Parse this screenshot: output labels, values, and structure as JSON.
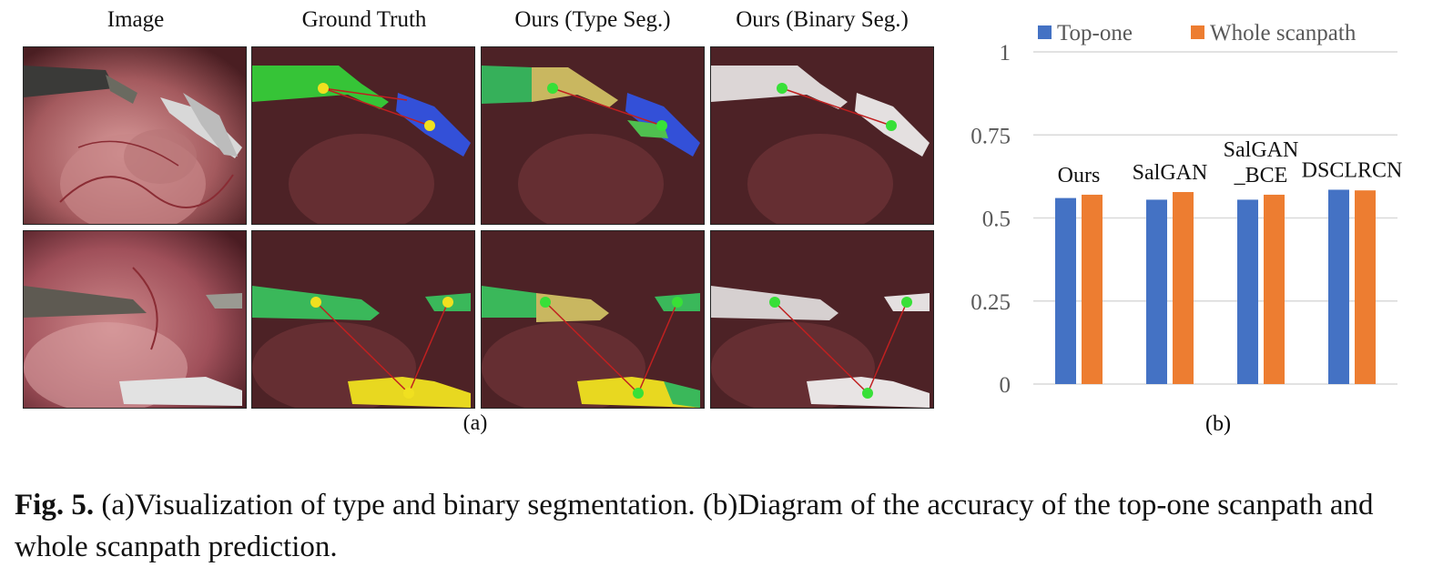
{
  "panel_a": {
    "column_headers": [
      "Image",
      "Ground Truth",
      "Ours (Type Seg.)",
      "Ours (Binary Seg.)"
    ],
    "sub_label": "(a)",
    "rows": [
      {
        "markers": [
          "1",
          "2"
        ]
      },
      {
        "markers": [
          "1",
          "2",
          "3"
        ]
      }
    ]
  },
  "panel_b": {
    "sub_label": "(b)"
  },
  "chart_data": {
    "type": "bar",
    "categories": [
      "Ours",
      "SalGAN",
      "SalGAN\n_BCE",
      "DSCLRCN"
    ],
    "category_lines": [
      [
        "Ours"
      ],
      [
        "SalGAN"
      ],
      [
        "SalGAN",
        "_BCE"
      ],
      [
        "DSCLRCN"
      ]
    ],
    "series": [
      {
        "name": "Top-one",
        "color": "#4472c4",
        "values": [
          0.56,
          0.555,
          0.555,
          0.585
        ]
      },
      {
        "name": "Whole scanpath",
        "color": "#ed7d31",
        "values": [
          0.57,
          0.578,
          0.57,
          0.583
        ]
      }
    ],
    "ylim": [
      0,
      1
    ],
    "yticks": [
      "0",
      "0.25",
      "0.5",
      "0.75",
      "1"
    ],
    "ytick_values": [
      0,
      0.25,
      0.5,
      0.75,
      1
    ],
    "grid": true,
    "legend": "top"
  },
  "caption": {
    "label": "Fig. 5.",
    "text": " (a)Visualization of type and binary segmentation. (b)Diagram of the accuracy of the top-one scanpath and whole scanpath prediction."
  }
}
